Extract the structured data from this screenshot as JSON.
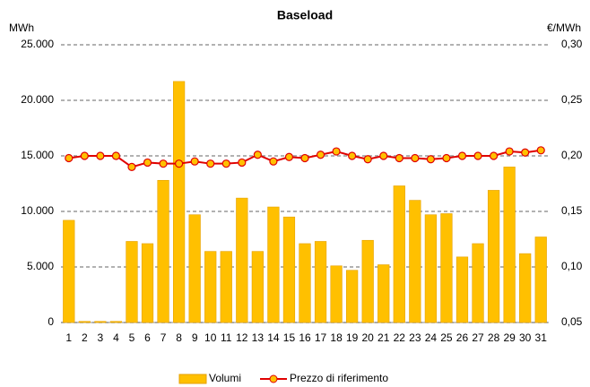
{
  "chart_data": {
    "type": "bar-line",
    "title": "Baseload",
    "y_label": "MWh",
    "y2_label": "€/MWh",
    "categories": [
      "1",
      "2",
      "3",
      "4",
      "5",
      "6",
      "7",
      "8",
      "9",
      "10",
      "11",
      "12",
      "13",
      "14",
      "15",
      "16",
      "17",
      "18",
      "19",
      "20",
      "21",
      "22",
      "23",
      "24",
      "25",
      "26",
      "27",
      "28",
      "29",
      "30",
      "31"
    ],
    "series": [
      {
        "name": "Volumi",
        "type": "bar",
        "color": "#ffc000",
        "stroke": "#e6a100",
        "values": [
          9200,
          100,
          100,
          100,
          7300,
          7100,
          12800,
          21700,
          9700,
          6400,
          6400,
          11200,
          6400,
          10400,
          9500,
          7100,
          7300,
          5100,
          4700,
          7400,
          5200,
          12300,
          11000,
          9700,
          9800,
          5900,
          7100,
          11900,
          14000,
          6200,
          7700
        ]
      },
      {
        "name": "Prezzo di riferimento",
        "type": "line",
        "axis": "y2",
        "color": "#e00000",
        "marker_color": "#ffc000",
        "values": [
          0.198,
          0.2,
          0.2,
          0.2,
          0.19,
          0.194,
          0.193,
          0.193,
          0.195,
          0.193,
          0.193,
          0.194,
          0.201,
          0.195,
          0.199,
          0.198,
          0.201,
          0.204,
          0.2,
          0.197,
          0.2,
          0.198,
          0.198,
          0.197,
          0.198,
          0.2,
          0.2,
          0.2,
          0.204,
          0.203,
          0.205
        ]
      }
    ],
    "ylim": [
      0,
      25000
    ],
    "yticks": [
      {
        "value": 0,
        "label": "0"
      },
      {
        "value": 5000,
        "label": "5.000"
      },
      {
        "value": 10000,
        "label": "10.000"
      },
      {
        "value": 15000,
        "label": "15.000"
      },
      {
        "value": 20000,
        "label": "20.000"
      },
      {
        "value": 25000,
        "label": "25.000"
      }
    ],
    "y2lim": [
      0.05,
      0.3
    ],
    "y2ticks": [
      {
        "value": 0.05,
        "label": "0,05"
      },
      {
        "value": 0.1,
        "label": "0,10"
      },
      {
        "value": 0.15,
        "label": "0,15"
      },
      {
        "value": 0.2,
        "label": "0,20"
      },
      {
        "value": 0.25,
        "label": "0,25"
      },
      {
        "value": 0.3,
        "label": "0,30"
      }
    ],
    "grid": true,
    "legend": "bottom"
  }
}
